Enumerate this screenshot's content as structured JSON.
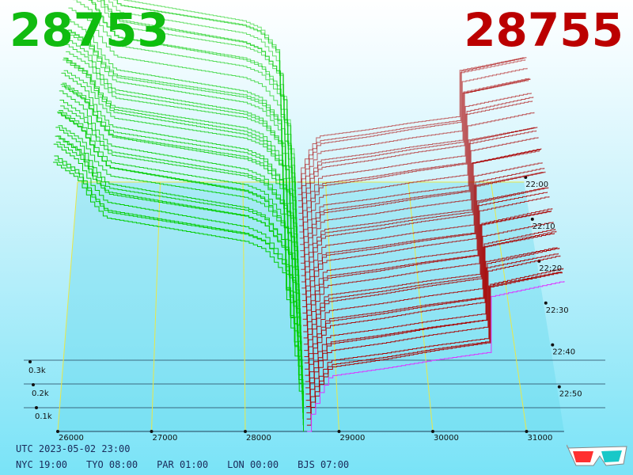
{
  "bid_price": "28753",
  "ask_price": "28755",
  "utc_time": "UTC 2023-05-02 23:00",
  "city_times": [
    "NYC 19:00",
    "TYO 08:00",
    "PAR 01:00",
    "LON 00:00",
    "BJS 07:00"
  ],
  "colors": {
    "bid": "#11bb11",
    "ask": "#bb0000",
    "bid_line": "#00cc00",
    "ask_line": "#aa0000",
    "current_ask": "#dd33ff",
    "grid": "#e8e84a"
  },
  "icons": [
    "3d-glasses-icon"
  ],
  "chart_data": {
    "type": "area",
    "view": "3d-depth-history",
    "x_ticks": [
      "26000",
      "27000",
      "28000",
      "29000",
      "30000",
      "31000"
    ],
    "y_ticks": [
      "0.1k",
      "0.2k",
      "0.3k"
    ],
    "time_ticks": [
      "22:00",
      "22:10",
      "22:20",
      "22:30",
      "22:40",
      "22:50"
    ],
    "bid_curve": {
      "price": [
        25950,
        26200,
        26350,
        26500,
        27000,
        27500,
        28000,
        28200,
        28400,
        28550,
        28620
      ],
      "cumulative": [
        0.34,
        0.32,
        0.29,
        0.27,
        0.26,
        0.25,
        0.24,
        0.23,
        0.2,
        0.08,
        0.0
      ]
    },
    "ask_curve": {
      "price": [
        28660,
        28700,
        28800,
        28900,
        29500,
        30000,
        30600,
        30600,
        31000,
        31400
      ],
      "cumulative": [
        0.0,
        0.02,
        0.05,
        0.07,
        0.08,
        0.09,
        0.1,
        0.17,
        0.18,
        0.19
      ]
    }
  }
}
